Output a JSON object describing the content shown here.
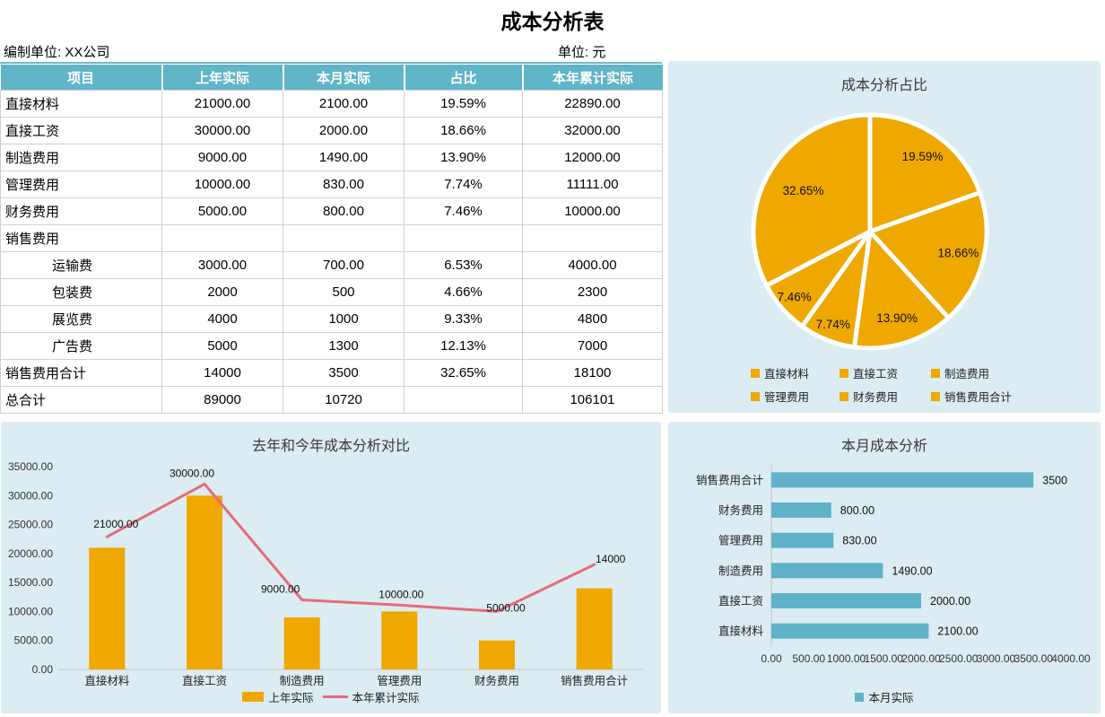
{
  "page": {
    "title": "成本分析表",
    "prepared_by": "编制单位: XX公司",
    "unit": "单位: 元"
  },
  "table": {
    "headers": [
      "项目",
      "上年实际",
      "本月实际",
      "占比",
      "本年累计实际"
    ],
    "rows": [
      {
        "label": "直接材料",
        "indent": false,
        "values": [
          "21000.00",
          "2100.00",
          "19.59%",
          "22890.00"
        ]
      },
      {
        "label": "直接工资",
        "indent": false,
        "values": [
          "30000.00",
          "2000.00",
          "18.66%",
          "32000.00"
        ]
      },
      {
        "label": "制造费用",
        "indent": false,
        "values": [
          "9000.00",
          "1490.00",
          "13.90%",
          "12000.00"
        ]
      },
      {
        "label": "管理费用",
        "indent": false,
        "values": [
          "10000.00",
          "830.00",
          "7.74%",
          "11111.00"
        ]
      },
      {
        "label": "财务费用",
        "indent": false,
        "values": [
          "5000.00",
          "800.00",
          "7.46%",
          "10000.00"
        ]
      },
      {
        "label": "销售费用",
        "indent": false,
        "values": [
          "",
          "",
          "",
          ""
        ]
      },
      {
        "label": "运输费",
        "indent": true,
        "values": [
          "3000.00",
          "700.00",
          "6.53%",
          "4000.00"
        ]
      },
      {
        "label": "包装费",
        "indent": true,
        "values": [
          "2000",
          "500",
          "4.66%",
          "2300"
        ]
      },
      {
        "label": "展览费",
        "indent": true,
        "values": [
          "4000",
          "1000",
          "9.33%",
          "4800"
        ]
      },
      {
        "label": "广告费",
        "indent": true,
        "values": [
          "5000",
          "1300",
          "12.13%",
          "7000"
        ]
      },
      {
        "label": "销售费用合计",
        "indent": false,
        "values": [
          "14000",
          "3500",
          "32.65%",
          "18100"
        ]
      },
      {
        "label": "总合计",
        "indent": false,
        "values": [
          "89000",
          "10720",
          "",
          "106101"
        ]
      }
    ]
  },
  "chart_data": [
    {
      "type": "pie",
      "title": "成本分析占比",
      "legend_position": "bottom",
      "labels": [
        "直接材料",
        "直接工资",
        "制造费用",
        "管理费用",
        "财务费用",
        "销售费用合计"
      ],
      "values": [
        19.59,
        18.66,
        13.9,
        7.74,
        7.46,
        32.65
      ],
      "data_labels": [
        "19.59%",
        "18.66%",
        "13.90%",
        "7.74%",
        "7.46%",
        "32.65%"
      ],
      "slice_color": "#EFA800"
    },
    {
      "type": "bar",
      "subtype": "bar-line-combo",
      "title": "去年和今年成本分析对比",
      "categories": [
        "直接材料",
        "直接工资",
        "制造费用",
        "管理费用",
        "财务费用",
        "销售费用合计"
      ],
      "series": [
        {
          "name": "上年实际",
          "kind": "bar",
          "color": "#EFA800",
          "values": [
            21000,
            30000,
            9000,
            10000,
            5000,
            14000
          ],
          "data_labels": [
            "21000.00",
            "30000.00",
            "9000.00",
            "10000.00",
            "5000.00",
            "14000"
          ]
        },
        {
          "name": "本年累计实际",
          "kind": "line",
          "color": "#E56B7E",
          "values": [
            22890,
            32000,
            12000,
            11111,
            10000,
            18100
          ]
        }
      ],
      "ylim": [
        0,
        35000
      ],
      "ytick_labels": [
        "35000.00",
        "30000.00",
        "25000.00",
        "20000.00",
        "15000.00",
        "10000.00",
        "5000.00",
        "0.00"
      ],
      "grid": false,
      "legend_position": "bottom"
    },
    {
      "type": "bar",
      "orientation": "horizontal",
      "title": "本月成本分析",
      "categories": [
        "销售费用合计",
        "财务费用",
        "管理费用",
        "制造费用",
        "直接工资",
        "直接材料"
      ],
      "series": [
        {
          "name": "本月实际",
          "color": "#5FB2C8",
          "values": [
            3500,
            800,
            830,
            1490,
            2000,
            2100
          ],
          "data_labels": [
            "3500",
            "800.00",
            "830.00",
            "1490.00",
            "2000.00",
            "2100.00"
          ]
        }
      ],
      "xlim": [
        0,
        4000
      ],
      "xtick_labels": [
        "0.00",
        "500.00",
        "1000.00",
        "1500.00",
        "2000.00",
        "2500.00",
        "3000.00",
        "3500.00",
        "4000.00"
      ],
      "grid": false,
      "legend_position": "bottom"
    }
  ],
  "colors": {
    "header_teal": "#60B5C9",
    "panel_bg": "#DBECF2",
    "accent_orange": "#EFA800",
    "accent_pink": "#E56B7E",
    "accent_teal": "#5FB2C8",
    "underline_teal": "#79B7C4",
    "grid_line": "#C4C4C4"
  }
}
